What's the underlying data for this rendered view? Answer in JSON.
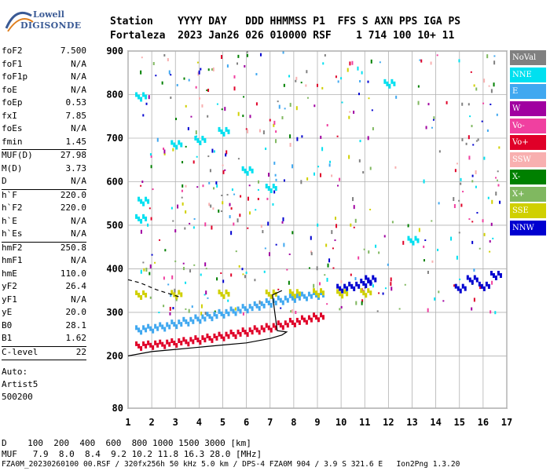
{
  "logo": {
    "line1": "Lowell",
    "line2": "DIGISONDE"
  },
  "header": {
    "row1": "Station    YYYY DAY   DDD HHMMSS P1  FFS S AXN PPS IGA PS",
    "row2": "Fortaleza  2023 Jan26 026 010000 RSF    1 714 100 10+ 11"
  },
  "params": [
    {
      "k": "foF2",
      "v": "7.500"
    },
    {
      "k": "foF1",
      "v": "N/A"
    },
    {
      "k": "foF1p",
      "v": "N/A"
    },
    {
      "k": "foE",
      "v": "N/A"
    },
    {
      "k": "foEp",
      "v": "0.53"
    },
    {
      "k": "fxI",
      "v": "7.85"
    },
    {
      "k": "foEs",
      "v": "N/A"
    },
    {
      "k": "fmin",
      "v": "1.45"
    },
    {
      "k": "MUF(D)",
      "v": "27.98",
      "sep": true
    },
    {
      "k": "M(D)",
      "v": "3.73"
    },
    {
      "k": "D",
      "v": "N/A"
    },
    {
      "k": "h`F",
      "v": "220.0",
      "sep": true
    },
    {
      "k": "h`F2",
      "v": "220.0"
    },
    {
      "k": "h`E",
      "v": "N/A"
    },
    {
      "k": "h`Es",
      "v": "N/A"
    },
    {
      "k": "hmF2",
      "v": "250.8",
      "sep": true
    },
    {
      "k": "hmF1",
      "v": "N/A"
    },
    {
      "k": "hmE",
      "v": "110.0"
    },
    {
      "k": "yF2",
      "v": "26.4"
    },
    {
      "k": "yF1",
      "v": "N/A"
    },
    {
      "k": "yE",
      "v": "20.0"
    },
    {
      "k": "B0",
      "v": "28.1"
    },
    {
      "k": "B1",
      "v": "1.62"
    },
    {
      "k": "C-level",
      "v": "22",
      "sep": true
    }
  ],
  "auto": {
    "l1": "Auto:",
    "l2": "Artist5",
    "l3": "500200"
  },
  "legend": [
    {
      "label": "NoVal",
      "color": "#808080"
    },
    {
      "label": "NNE",
      "color": "#00e0f0"
    },
    {
      "label": "E",
      "color": "#40a8f0"
    },
    {
      "label": "W",
      "color": "#a000a0"
    },
    {
      "label": "Vo-",
      "color": "#f040a0"
    },
    {
      "label": "Vo+",
      "color": "#e00028"
    },
    {
      "label": "SSW",
      "color": "#f8b0b0"
    },
    {
      "label": "X-",
      "color": "#008000"
    },
    {
      "label": "X+",
      "color": "#80b860"
    },
    {
      "label": "SSE",
      "color": "#d0d000"
    },
    {
      "label": "NNW",
      "color": "#0000d0"
    }
  ],
  "footer": {
    "d_row": "D    100  200  400  600  800 1000 1500 3000 [km]",
    "muf_row": "MUF   7.9  8.0  8.4  9.2 10.2 11.8 16.3 28.0 [MHz]",
    "file_row": "FZA0M_20230260100 00.RSF / 320fx256h 50 kHz 5.0 km / DPS-4 FZA0M 904 / 3.9 S 321.6 E   Ion2Png 1.3.20"
  },
  "chart_data": {
    "type": "scatter",
    "title": "",
    "xlabel": "",
    "ylabel": "",
    "xlim": [
      1,
      17
    ],
    "ylim": [
      80,
      900
    ],
    "xticks": [
      1,
      2,
      3,
      4,
      5,
      6,
      7,
      8,
      9,
      10,
      11,
      12,
      13,
      14,
      15,
      16,
      17
    ],
    "yticks": [
      80,
      200,
      300,
      400,
      500,
      600,
      700,
      800,
      900
    ],
    "grid": true,
    "series": [
      {
        "name": "E",
        "color": "#40a8f0",
        "points": [
          [
            1.5,
            265
          ],
          [
            2,
            268
          ],
          [
            2.5,
            272
          ],
          [
            3,
            278
          ],
          [
            3.5,
            284
          ],
          [
            4,
            290
          ],
          [
            4.5,
            296
          ],
          [
            5,
            302
          ],
          [
            5.5,
            308
          ],
          [
            6,
            314
          ],
          [
            6.5,
            320
          ],
          [
            7,
            327
          ],
          [
            7.5,
            333
          ],
          [
            8,
            338
          ],
          [
            8.5,
            342
          ],
          [
            9,
            345
          ]
        ]
      },
      {
        "name": "Vo+",
        "color": "#e00028",
        "points": [
          [
            1.5,
            228
          ],
          [
            2,
            230
          ],
          [
            2.5,
            232
          ],
          [
            3,
            235
          ],
          [
            3.5,
            238
          ],
          [
            4,
            242
          ],
          [
            4.5,
            246
          ],
          [
            5,
            250
          ],
          [
            5.5,
            255
          ],
          [
            6,
            260
          ],
          [
            6.5,
            265
          ],
          [
            7,
            270
          ],
          [
            7.5,
            276
          ],
          [
            8,
            282
          ],
          [
            8.5,
            288
          ],
          [
            9,
            294
          ]
        ]
      },
      {
        "name": "SSE",
        "color": "#d0d000",
        "points": [
          [
            1.5,
            345
          ],
          [
            3,
            346
          ],
          [
            5,
            347
          ],
          [
            7,
            347
          ],
          [
            8,
            348
          ],
          [
            9,
            350
          ],
          [
            10,
            348
          ],
          [
            11,
            350
          ]
        ]
      },
      {
        "name": "NNW",
        "color": "#0000d0",
        "points": [
          [
            10,
            360
          ],
          [
            10.5,
            365
          ],
          [
            11,
            372
          ],
          [
            11.2,
            380
          ],
          [
            15,
            360
          ],
          [
            15.5,
            380
          ],
          [
            16,
            365
          ],
          [
            16.5,
            390
          ]
        ]
      },
      {
        "name": "NNE",
        "color": "#00e0f0",
        "points": [
          [
            1.5,
            520
          ],
          [
            1.6,
            560
          ],
          [
            1.5,
            800
          ],
          [
            3,
            690
          ],
          [
            4,
            700
          ],
          [
            5,
            720
          ],
          [
            6,
            630
          ],
          [
            7,
            590
          ],
          [
            12,
            830
          ],
          [
            13,
            470
          ]
        ]
      }
    ],
    "traces": [
      {
        "name": "O-trace",
        "color": "#000000",
        "points": [
          [
            1.0,
            200
          ],
          [
            2,
            210
          ],
          [
            3,
            215
          ],
          [
            4,
            220
          ],
          [
            5,
            225
          ],
          [
            6,
            230
          ],
          [
            7,
            240
          ],
          [
            7.5,
            248
          ],
          [
            7.7,
            255
          ],
          [
            7.3,
            258
          ],
          [
            7.1,
            340
          ],
          [
            7.5,
            350
          ]
        ]
      },
      {
        "name": "X-trace",
        "color": "#000000",
        "dash": true,
        "points": [
          [
            1.0,
            375
          ],
          [
            1.5,
            368
          ],
          [
            2.2,
            352
          ],
          [
            3.2,
            335
          ]
        ]
      }
    ]
  }
}
